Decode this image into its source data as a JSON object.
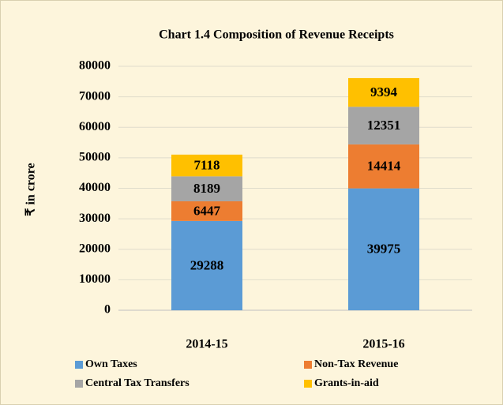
{
  "chart_data": {
    "type": "stacked_bar",
    "title": "Chart 1.4 Composition of Revenue Receipts",
    "y_label": "₹ in crore",
    "categories": [
      "2014-15",
      "2015-16"
    ],
    "series": [
      {
        "name": "Own Taxes",
        "color": "#5b9bd5",
        "values": [
          29288,
          39975
        ]
      },
      {
        "name": "Non-Tax Revenue",
        "color": "#ed7d31",
        "values": [
          6447,
          14414
        ]
      },
      {
        "name": "Central Tax Transfers",
        "color": "#a5a5a5",
        "values": [
          8189,
          12351
        ]
      },
      {
        "name": "Grants-in-aid",
        "color": "#ffc000",
        "values": [
          7118,
          9394
        ]
      }
    ],
    "ylim": [
      0,
      80000
    ],
    "yticks": [
      0,
      10000,
      20000,
      30000,
      40000,
      50000,
      60000,
      70000,
      80000
    ],
    "grid": true,
    "legend": "bottom"
  }
}
